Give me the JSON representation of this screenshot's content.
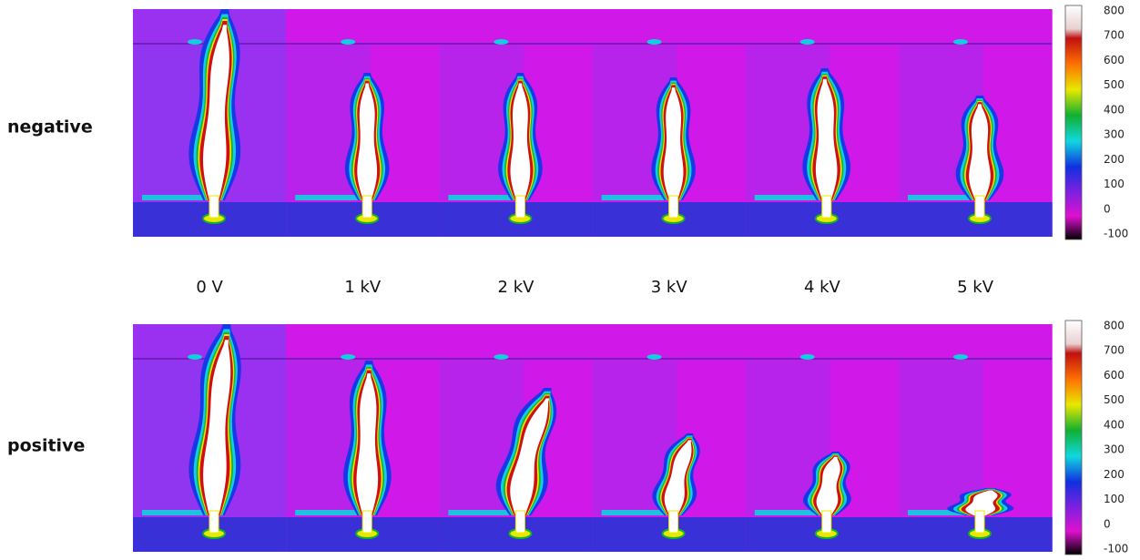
{
  "row_labels": [
    "negative",
    "positive"
  ],
  "column_labels": [
    "0 V",
    "1 kV",
    "2 kV",
    "3 kV",
    "4 kV",
    "5 kV"
  ],
  "colorbars": [
    {
      "ticks": [
        800,
        700,
        600,
        500,
        400,
        300,
        200,
        100,
        0,
        -100
      ]
    },
    {
      "ticks": [
        800,
        700,
        600,
        500,
        400,
        300,
        200,
        100,
        0,
        -100
      ]
    }
  ]
}
